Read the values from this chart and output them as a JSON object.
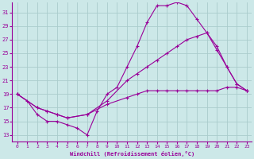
{
  "xlabel": "Windchill (Refroidissement éolien,°C)",
  "background_color": "#cce8e8",
  "grid_color": "#aacccc",
  "line_color": "#990099",
  "xlim": [
    -0.5,
    23.5
  ],
  "ylim": [
    12,
    32.5
  ],
  "yticks": [
    13,
    15,
    17,
    19,
    21,
    23,
    25,
    27,
    29,
    31
  ],
  "xticks": [
    0,
    1,
    2,
    3,
    4,
    5,
    6,
    7,
    8,
    9,
    10,
    11,
    12,
    13,
    14,
    15,
    16,
    17,
    18,
    19,
    20,
    21,
    22,
    23
  ],
  "series": [
    {
      "x": [
        0,
        1,
        2,
        3,
        4,
        5,
        6,
        7,
        8,
        9,
        10,
        11,
        12,
        13,
        14,
        15,
        16,
        17,
        18,
        19,
        20,
        21,
        22,
        23
      ],
      "y": [
        19,
        18,
        16,
        15,
        15,
        14.5,
        14,
        13,
        16.5,
        19,
        20,
        23,
        26,
        29.5,
        32,
        32,
        32.5,
        32,
        30,
        28,
        26,
        23,
        20.5,
        19.5
      ]
    },
    {
      "x": [
        0,
        2,
        3,
        4,
        5,
        7,
        9,
        11,
        12,
        13,
        14,
        15,
        16,
        17,
        18,
        19,
        20,
        21,
        22,
        23
      ],
      "y": [
        19,
        17,
        16.5,
        16,
        15.5,
        16,
        18,
        21,
        22,
        23,
        24,
        25,
        26,
        27,
        27.5,
        28,
        25.5,
        23,
        20.5,
        19.5
      ]
    },
    {
      "x": [
        0,
        2,
        3,
        4,
        5,
        7,
        9,
        11,
        12,
        13,
        14,
        15,
        16,
        17,
        18,
        19,
        20,
        21,
        22,
        23
      ],
      "y": [
        19,
        17,
        16.5,
        16,
        15.5,
        16,
        17.5,
        18.5,
        19,
        19.5,
        19.5,
        19.5,
        19.5,
        19.5,
        19.5,
        19.5,
        19.5,
        20,
        20,
        19.5
      ]
    }
  ]
}
